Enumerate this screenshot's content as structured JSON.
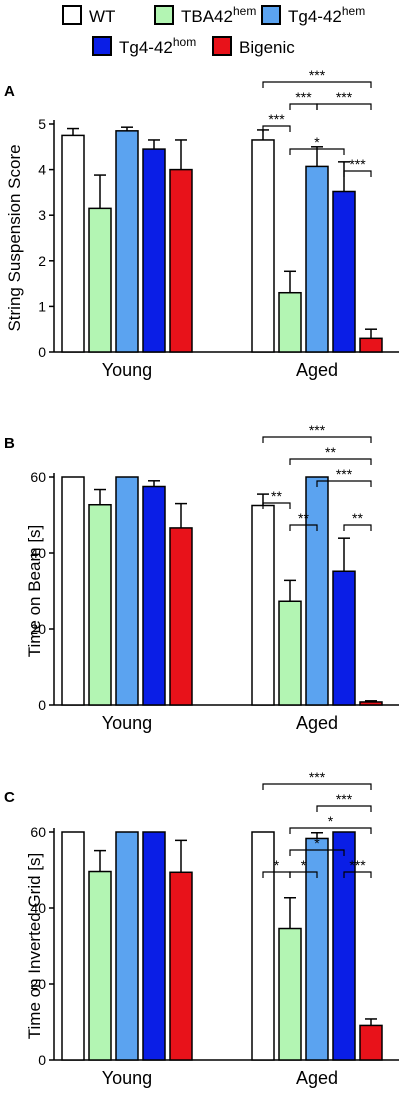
{
  "legend": {
    "items": [
      {
        "base": "WT",
        "sup": "",
        "color": "#ffffff"
      },
      {
        "base": "TBA42",
        "sup": "hem",
        "color": "#b3f5b3"
      },
      {
        "base": "Tg4-42",
        "sup": "hem",
        "color": "#5ba3f0"
      },
      {
        "base": "Tg4-42",
        "sup": "hom",
        "color": "#0a1ee6"
      },
      {
        "base": "Bigenic",
        "sup": "",
        "color": "#e8121a"
      }
    ]
  },
  "chart_data": [
    {
      "type": "bar",
      "panel_label": "A",
      "ylabel": "String Suspension Score",
      "ylim": [
        0,
        5
      ],
      "yticks": [
        "0",
        "1",
        "2",
        "3",
        "4",
        "5"
      ],
      "categories": [
        "Young",
        "Aged"
      ],
      "series": [
        {
          "name": "WT",
          "values": [
            4.75,
            4.65
          ],
          "errors": [
            0.15,
            0.22
          ]
        },
        {
          "name": "TBA42hem",
          "values": [
            3.15,
            1.3
          ],
          "errors": [
            0.73,
            0.47
          ]
        },
        {
          "name": "Tg4-42hem",
          "values": [
            4.85,
            4.07
          ],
          "errors": [
            0.08,
            0.43
          ]
        },
        {
          "name": "Tg4-42hom",
          "values": [
            4.45,
            3.52
          ],
          "errors": [
            0.2,
            0.65
          ]
        },
        {
          "name": "Bigenic",
          "values": [
            4.0,
            0.3
          ],
          "errors": [
            0.65,
            0.2
          ]
        }
      ],
      "significance": [
        {
          "from": 0,
          "to": 4,
          "label": "***"
        },
        {
          "from": 1,
          "to": 2,
          "label": "***"
        },
        {
          "from": 2,
          "to": 4,
          "label": "***"
        },
        {
          "from": 0,
          "to": 1,
          "label": "***"
        },
        {
          "from": 1,
          "to": 3,
          "label": "*"
        },
        {
          "from": 3,
          "to": 4,
          "label": "***"
        }
      ]
    },
    {
      "type": "bar",
      "panel_label": "B",
      "ylabel": "Time on Beam [s]",
      "ylim": [
        0,
        60
      ],
      "yticks": [
        "0",
        "20",
        "40",
        "60"
      ],
      "categories": [
        "Young",
        "Aged"
      ],
      "series": [
        {
          "name": "WT",
          "values": [
            60,
            52.5
          ],
          "errors": [
            0,
            3
          ]
        },
        {
          "name": "TBA42hem",
          "values": [
            52.7,
            27.3
          ],
          "errors": [
            4,
            5.5
          ]
        },
        {
          "name": "Tg4-42hem",
          "values": [
            60,
            60
          ],
          "errors": [
            0,
            0
          ]
        },
        {
          "name": "Tg4-42hom",
          "values": [
            57.5,
            35.2
          ],
          "errors": [
            1.5,
            8.7
          ]
        },
        {
          "name": "Bigenic",
          "values": [
            46.6,
            0.8
          ],
          "errors": [
            6.4,
            0.3
          ]
        }
      ],
      "significance": [
        {
          "from": 0,
          "to": 4,
          "label": "***"
        },
        {
          "from": 1,
          "to": 4,
          "label": "**"
        },
        {
          "from": 2,
          "to": 4,
          "label": "***"
        },
        {
          "from": 0,
          "to": 1,
          "label": "**"
        },
        {
          "from": 1,
          "to": 2,
          "label": "**"
        },
        {
          "from": 3,
          "to": 4,
          "label": "**"
        }
      ]
    },
    {
      "type": "bar",
      "panel_label": "C",
      "ylabel": "Time on Inverted Grid [s]",
      "ylim": [
        0,
        60
      ],
      "yticks": [
        "0",
        "20",
        "40",
        "60"
      ],
      "categories": [
        "Young",
        "Aged"
      ],
      "series": [
        {
          "name": "WT",
          "values": [
            60,
            60
          ],
          "errors": [
            0,
            0
          ]
        },
        {
          "name": "TBA42hem",
          "values": [
            49.6,
            34.6
          ],
          "errors": [
            5.5,
            8.1
          ]
        },
        {
          "name": "Tg4-42hem",
          "values": [
            60,
            58.3
          ],
          "errors": [
            0,
            1.5
          ]
        },
        {
          "name": "Tg4-42hom",
          "values": [
            60,
            60
          ],
          "errors": [
            0,
            0
          ]
        },
        {
          "name": "Bigenic",
          "values": [
            49.4,
            9.1
          ],
          "errors": [
            8.4,
            1.7
          ]
        }
      ],
      "significance": [
        {
          "from": 0,
          "to": 4,
          "label": "***"
        },
        {
          "from": 2,
          "to": 4,
          "label": "***"
        },
        {
          "from": 1,
          "to": 4,
          "label": "*"
        },
        {
          "from": 1,
          "to": 3,
          "label": "*"
        },
        {
          "from": 0,
          "to": 1,
          "label": "*"
        },
        {
          "from": 1,
          "to": 2,
          "label": "*"
        },
        {
          "from": 3,
          "to": 4,
          "label": "***"
        }
      ]
    }
  ]
}
